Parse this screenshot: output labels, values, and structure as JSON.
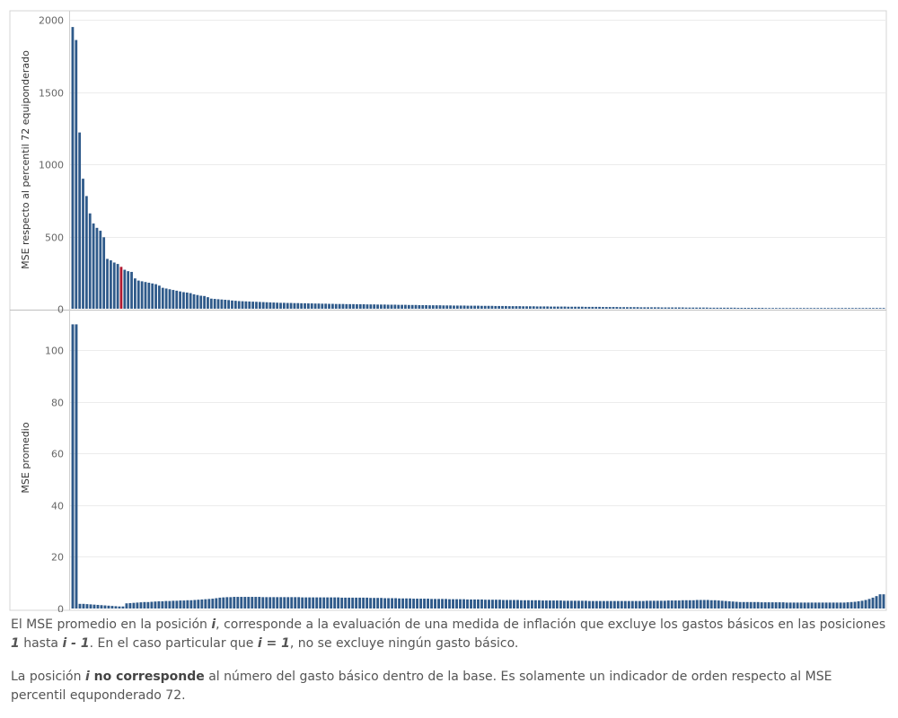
{
  "chart_data": [
    {
      "type": "bar",
      "ylabel": "MSE respecto al percentil 72 equiponderado",
      "ylim": [
        0,
        2050
      ],
      "yticks": [
        0,
        500,
        1000,
        1500,
        2000
      ],
      "highlight_index": 14,
      "colors": {
        "bar": "#2f5a8a",
        "highlight": "#b0182f"
      },
      "values": [
        1950,
        1860,
        1220,
        900,
        780,
        660,
        590,
        560,
        540,
        495,
        345,
        335,
        320,
        310,
        290,
        270,
        260,
        255,
        210,
        195,
        190,
        185,
        180,
        175,
        170,
        160,
        145,
        140,
        135,
        130,
        125,
        120,
        115,
        112,
        108,
        100,
        95,
        90,
        88,
        80,
        70,
        68,
        66,
        64,
        62,
        60,
        57,
        55,
        53,
        52,
        51,
        50,
        49,
        48,
        47,
        46,
        45,
        44,
        43,
        42,
        41,
        41,
        40,
        40,
        39,
        39,
        38,
        38,
        37,
        37,
        36,
        36,
        35,
        35,
        34,
        34,
        33,
        33,
        33,
        32,
        32,
        32,
        31,
        31,
        31,
        30,
        30,
        30,
        29,
        29,
        29,
        28,
        28,
        28,
        27,
        27,
        27,
        26,
        26,
        26,
        25,
        25,
        25,
        24,
        24,
        24,
        24,
        23,
        23,
        23,
        22,
        22,
        22,
        22,
        21,
        21,
        21,
        21,
        20,
        20,
        20,
        20,
        19,
        19,
        19,
        19,
        18,
        18,
        18,
        18,
        17,
        17,
        17,
        17,
        16,
        16,
        16,
        16,
        15,
        15,
        15,
        15,
        15,
        14,
        14,
        14,
        14,
        14,
        13,
        13,
        13,
        13,
        13,
        12,
        12,
        12,
        12,
        12,
        11,
        11,
        11,
        11,
        11,
        11,
        10,
        10,
        10,
        10,
        10,
        10,
        9,
        9,
        9,
        9,
        9,
        9,
        9,
        8,
        8,
        8,
        8,
        8,
        8,
        8,
        7,
        7,
        7,
        7,
        7,
        7,
        7,
        7,
        6,
        6,
        6,
        6,
        6,
        6,
        6,
        6,
        5,
        5,
        5,
        5,
        5,
        5,
        5,
        5,
        5,
        4,
        4,
        4,
        4,
        4,
        4,
        4,
        4,
        4,
        4,
        3,
        3,
        3,
        3,
        3,
        3,
        3,
        3,
        3,
        3,
        2,
        2,
        2,
        2,
        2,
        2
      ]
    },
    {
      "type": "bar",
      "ylabel": "MSE promedio",
      "ylim": [
        0,
        115
      ],
      "yticks": [
        0,
        20,
        40,
        60,
        80,
        100
      ],
      "colors": {
        "bar": "#2f5a8a"
      },
      "values": [
        110,
        110,
        1.8,
        1.8,
        1.7,
        1.6,
        1.5,
        1.4,
        1.3,
        1.2,
        1.1,
        1.0,
        0.9,
        0.8,
        0.8,
        2.0,
        2.1,
        2.2,
        2.3,
        2.4,
        2.5,
        2.5,
        2.6,
        2.7,
        2.8,
        2.8,
        2.9,
        2.9,
        3.0,
        3.0,
        3.1,
        3.1,
        3.2,
        3.2,
        3.3,
        3.4,
        3.5,
        3.6,
        3.7,
        3.8,
        4.0,
        4.2,
        4.3,
        4.4,
        4.4,
        4.5,
        4.5,
        4.5,
        4.5,
        4.5,
        4.5,
        4.5,
        4.5,
        4.4,
        4.4,
        4.4,
        4.4,
        4.4,
        4.4,
        4.4,
        4.4,
        4.4,
        4.4,
        4.4,
        4.3,
        4.3,
        4.3,
        4.3,
        4.3,
        4.3,
        4.3,
        4.3,
        4.3,
        4.3,
        4.3,
        4.2,
        4.2,
        4.2,
        4.2,
        4.2,
        4.2,
        4.2,
        4.2,
        4.1,
        4.1,
        4.1,
        4.1,
        4.0,
        4.0,
        4.0,
        4.0,
        3.9,
        3.9,
        3.9,
        3.9,
        3.8,
        3.8,
        3.8,
        3.8,
        3.8,
        3.7,
        3.7,
        3.7,
        3.7,
        3.7,
        3.6,
        3.6,
        3.6,
        3.6,
        3.6,
        3.5,
        3.5,
        3.5,
        3.5,
        3.5,
        3.4,
        3.4,
        3.4,
        3.4,
        3.4,
        3.3,
        3.3,
        3.3,
        3.3,
        3.3,
        3.2,
        3.2,
        3.2,
        3.2,
        3.2,
        3.2,
        3.1,
        3.1,
        3.1,
        3.1,
        3.1,
        3.1,
        3.0,
        3.0,
        3.0,
        3.0,
        3.0,
        3.0,
        3.0,
        2.9,
        2.9,
        2.9,
        2.9,
        2.9,
        2.9,
        2.9,
        2.9,
        2.9,
        2.9,
        2.9,
        2.9,
        2.9,
        2.9,
        2.9,
        2.9,
        3.0,
        3.0,
        3.0,
        3.0,
        3.0,
        3.0,
        3.1,
        3.1,
        3.1,
        3.1,
        3.2,
        3.2,
        3.2,
        3.2,
        3.3,
        3.3,
        3.3,
        3.3,
        3.2,
        3.2,
        3.1,
        3.0,
        2.9,
        2.8,
        2.7,
        2.6,
        2.5,
        2.5,
        2.5,
        2.5,
        2.5,
        2.5,
        2.4,
        2.4,
        2.4,
        2.4,
        2.4,
        2.4,
        2.4,
        2.3,
        2.3,
        2.3,
        2.3,
        2.3,
        2.3,
        2.3,
        2.3,
        2.3,
        2.3,
        2.3,
        2.3,
        2.3,
        2.3,
        2.3,
        2.3,
        2.3,
        2.4,
        2.5,
        2.6,
        2.8,
        3.0,
        3.3,
        3.7,
        4.2,
        4.8,
        5.5,
        5.5
      ]
    }
  ],
  "footnotes": {
    "p1_a": "El MSE promedio en la posición ",
    "p1_var1": "i",
    "p1_b": ", corresponde a la evaluación de una medida de inflación que excluye los gastos básicos en las posiciones ",
    "p1_var2": "1",
    "p1_c": " hasta ",
    "p1_var3": "i - 1",
    "p1_d": ". En el caso particular que ",
    "p1_var4": "i = 1",
    "p1_e": ", no se excluye ningún gasto básico.",
    "p2_a": "La posición ",
    "p2_var": "i",
    "p2_bold": " no corresponde",
    "p2_b": " al número del gasto básico dentro de la base. Es solamente un indicador de orden respecto al MSE percentil equponderado 72."
  }
}
